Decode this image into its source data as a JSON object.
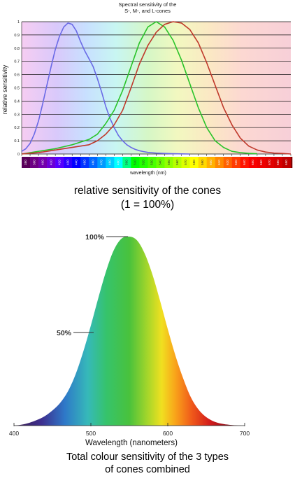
{
  "chart_data": [
    {
      "type": "line",
      "title": "Spectral sensitivity of the\nS-, M-, and L-cones",
      "xlabel": "wavelength (nm)",
      "ylabel": "relative sensitivity",
      "xlim": [
        380,
        700
      ],
      "ylim": [
        0,
        1
      ],
      "yticks": [
        "0",
        "0.1",
        "0.2",
        "0.3",
        "0.4",
        "0.5",
        "0.6",
        "0.7",
        "0.8",
        "0.9",
        "1"
      ],
      "xticks": [
        "380",
        "390",
        "400",
        "410",
        "420",
        "430",
        "440",
        "450",
        "460",
        "470",
        "480",
        "490",
        "500",
        "510",
        "520",
        "530",
        "540",
        "550",
        "560",
        "570",
        "580",
        "590",
        "600",
        "610",
        "620",
        "630",
        "640",
        "650",
        "660",
        "670",
        "680",
        "690",
        "700"
      ],
      "grid": true,
      "series": [
        {
          "id": "S",
          "color": "#6a6ae6",
          "x": [
            380,
            385,
            390,
            395,
            400,
            405,
            410,
            415,
            420,
            425,
            430,
            435,
            440,
            445,
            450,
            455,
            460,
            465,
            470,
            475,
            480,
            485,
            490,
            495,
            500,
            505,
            510,
            515,
            520,
            525,
            530,
            540,
            550,
            560,
            570,
            580
          ],
          "y": [
            0.02,
            0.04,
            0.08,
            0.15,
            0.25,
            0.38,
            0.52,
            0.66,
            0.79,
            0.89,
            0.96,
            0.99,
            0.98,
            0.93,
            0.85,
            0.78,
            0.72,
            0.66,
            0.57,
            0.47,
            0.36,
            0.27,
            0.2,
            0.14,
            0.1,
            0.07,
            0.05,
            0.035,
            0.025,
            0.018,
            0.012,
            0.007,
            0.004,
            0.002,
            0.001,
            0.0
          ]
        },
        {
          "id": "M",
          "color": "#2ac42a",
          "x": [
            380,
            400,
            420,
            440,
            450,
            460,
            470,
            480,
            490,
            500,
            510,
            520,
            530,
            540,
            550,
            560,
            570,
            580,
            590,
            600,
            610,
            620,
            630,
            640,
            650,
            660
          ],
          "y": [
            0.0,
            0.02,
            0.04,
            0.07,
            0.09,
            0.11,
            0.15,
            0.23,
            0.33,
            0.48,
            0.66,
            0.84,
            0.96,
            1.0,
            0.96,
            0.86,
            0.71,
            0.53,
            0.35,
            0.2,
            0.1,
            0.05,
            0.02,
            0.01,
            0.005,
            0.002
          ]
        },
        {
          "id": "L",
          "color": "#c0392b",
          "x": [
            380,
            400,
            420,
            440,
            450,
            460,
            470,
            480,
            490,
            500,
            510,
            520,
            530,
            540,
            550,
            560,
            570,
            580,
            590,
            600,
            610,
            620,
            630,
            640,
            650,
            660,
            670,
            680,
            690,
            700
          ],
          "y": [
            0.0,
            0.01,
            0.03,
            0.05,
            0.06,
            0.07,
            0.1,
            0.15,
            0.22,
            0.33,
            0.5,
            0.68,
            0.82,
            0.92,
            0.98,
            1.0,
            0.99,
            0.94,
            0.84,
            0.69,
            0.52,
            0.35,
            0.22,
            0.12,
            0.06,
            0.03,
            0.015,
            0.007,
            0.004,
            0.0
          ]
        }
      ]
    },
    {
      "type": "area",
      "xlabel": "Wavelength (nanometers)",
      "xlim": [
        400,
        700
      ],
      "ylim": [
        0,
        1
      ],
      "xticks": [
        "400",
        "500",
        "600",
        "700"
      ],
      "annotations": [
        "100%",
        "50%"
      ],
      "x": [
        400,
        410,
        420,
        430,
        440,
        450,
        460,
        470,
        480,
        490,
        500,
        510,
        520,
        530,
        540,
        550,
        560,
        570,
        580,
        590,
        600,
        610,
        620,
        630,
        640,
        650,
        660,
        670,
        680,
        690,
        700
      ],
      "y": [
        0.0,
        0.005,
        0.015,
        0.03,
        0.05,
        0.08,
        0.12,
        0.18,
        0.27,
        0.39,
        0.53,
        0.68,
        0.82,
        0.93,
        0.99,
        1.0,
        0.98,
        0.91,
        0.8,
        0.66,
        0.51,
        0.37,
        0.25,
        0.15,
        0.085,
        0.045,
        0.022,
        0.01,
        0.004,
        0.001,
        0.0
      ]
    }
  ],
  "captions": {
    "top": "relative sensitivity of the cones\n(1 = 100%)",
    "bottom": "Total colour sensitivity of the 3 types\nof cones combined"
  }
}
